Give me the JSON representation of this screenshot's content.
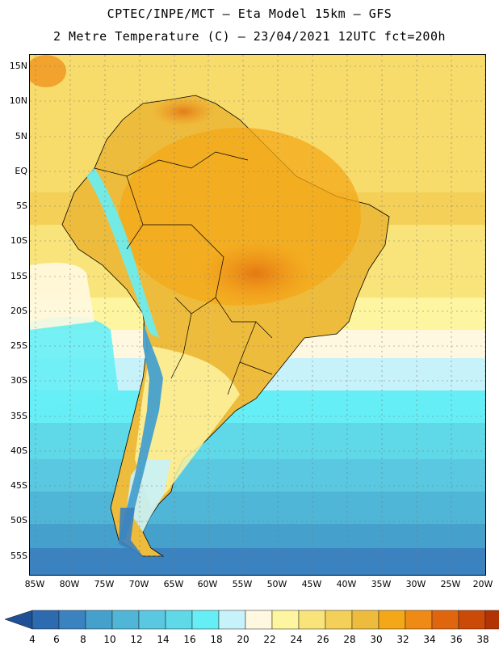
{
  "header": {
    "line1": "CPTEC/INPE/MCT –  Eta Model 15km – GFS",
    "line2": "2 Metre Temperature (C) – 23/04/2021 12UTC fct=200h"
  },
  "map": {
    "lat_labels": [
      "15N",
      "10N",
      "5N",
      "EQ",
      "5S",
      "10S",
      "15S",
      "20S",
      "25S",
      "30S",
      "35S",
      "40S",
      "45S",
      "50S",
      "55S"
    ],
    "lon_labels": [
      "85W",
      "80W",
      "75W",
      "70W",
      "65W",
      "60W",
      "55W",
      "50W",
      "45W",
      "40W",
      "35W",
      "30W",
      "25W",
      "20W"
    ],
    "field": "2 Metre Temperature (C)"
  },
  "legend": {
    "ticks": [
      "4",
      "6",
      "8",
      "10",
      "12",
      "14",
      "16",
      "18",
      "20",
      "22",
      "24",
      "26",
      "28",
      "30",
      "32",
      "34",
      "36",
      "38"
    ],
    "colors": [
      "#2c6bb0",
      "#3a82c0",
      "#46a0cc",
      "#50b6d8",
      "#5ac8e0",
      "#5fd8e8",
      "#66eef6",
      "#c8f2fa",
      "#fff8e0",
      "#fdf5a0",
      "#f8e47a",
      "#f4d058",
      "#eebc3c",
      "#f4a818",
      "#ef8a14",
      "#e0660e",
      "#cc4a08",
      "#b23404"
    ],
    "low_arrow_color": "#1f5096",
    "high_arrow_color": "#96280a"
  }
}
